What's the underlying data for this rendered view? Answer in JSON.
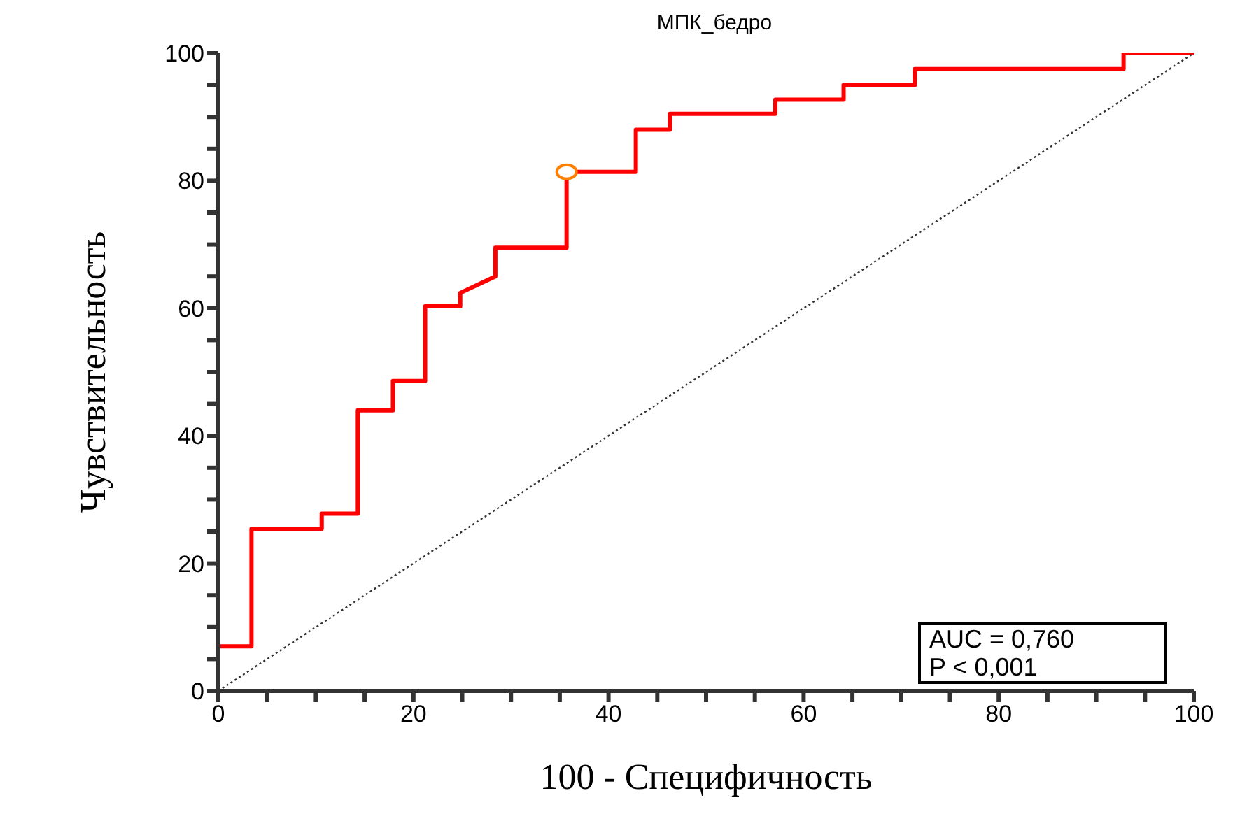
{
  "chart_data": {
    "type": "line",
    "title": "МПК_бедро",
    "xlabel": "100 - Специфичность",
    "ylabel": "Чувствительность",
    "xlim": [
      0,
      100
    ],
    "ylim": [
      0,
      100
    ],
    "xticks": [
      0,
      {
        "value": 5,
        "label": null
      },
      {
        "value": 10,
        "label": null
      },
      {
        "value": 15,
        "label": null
      },
      20,
      {
        "value": 25,
        "label": null
      },
      {
        "value": 30,
        "label": null
      },
      {
        "value": 35,
        "label": null
      },
      40,
      {
        "value": 45,
        "label": null
      },
      {
        "value": 50,
        "label": null
      },
      {
        "value": 55,
        "label": null
      },
      60,
      {
        "value": 65,
        "label": null
      },
      {
        "value": 70,
        "label": null
      },
      {
        "value": 75,
        "label": null
      },
      80,
      {
        "value": 85,
        "label": null
      },
      {
        "value": 90,
        "label": null
      },
      {
        "value": 95,
        "label": null
      },
      100
    ],
    "yticks": [
      0,
      {
        "value": 5,
        "label": null
      },
      {
        "value": 10,
        "label": null
      },
      {
        "value": 15,
        "label": null
      },
      20,
      {
        "value": 25,
        "label": null
      },
      {
        "value": 30,
        "label": null
      },
      {
        "value": 35,
        "label": null
      },
      40,
      {
        "value": 45,
        "label": null
      },
      {
        "value": 50,
        "label": null
      },
      {
        "value": 55,
        "label": null
      },
      60,
      {
        "value": 65,
        "label": null
      },
      {
        "value": 70,
        "label": null
      },
      {
        "value": 75,
        "label": null
      },
      80,
      {
        "value": 85,
        "label": null
      },
      {
        "value": 90,
        "label": null
      },
      {
        "value": 95,
        "label": null
      },
      100
    ],
    "grid": false,
    "annotations": [
      "AUC = 0,760",
      "P < 0,001"
    ],
    "series": [
      {
        "color": "#ff0000",
        "line_style": "solid",
        "marker": "none",
        "x": [
          0,
          0,
          3.4,
          3.4,
          10.6,
          10.6,
          14.3,
          14.3,
          17.9,
          17.9,
          21.2,
          21.2,
          24.8,
          24.8,
          28.4,
          28.4,
          35.7,
          35.7,
          42.8,
          42.8,
          46.3,
          46.3,
          57.1,
          57.1,
          64.1,
          64.1,
          71.4,
          71.4,
          92.8,
          92.8,
          100
        ],
        "values": [
          0,
          7,
          7,
          25.4,
          25.4,
          27.8,
          27.8,
          44,
          44,
          48.6,
          48.6,
          60.3,
          60.3,
          62.4,
          65,
          69.5,
          69.5,
          81.4,
          81.4,
          88,
          88,
          90.5,
          90.5,
          92.7,
          92.7,
          95,
          95,
          97.5,
          97.5,
          100,
          100
        ]
      },
      {
        "type": "line",
        "color": "#333333",
        "line_style": "dotted",
        "marker": "none",
        "x": [
          0,
          100
        ],
        "values": [
          0,
          100
        ]
      },
      {
        "type": "scatter",
        "color": "#ff7f00",
        "marker": "circle",
        "x": [
          35.7
        ],
        "values": [
          81.4
        ]
      }
    ]
  }
}
